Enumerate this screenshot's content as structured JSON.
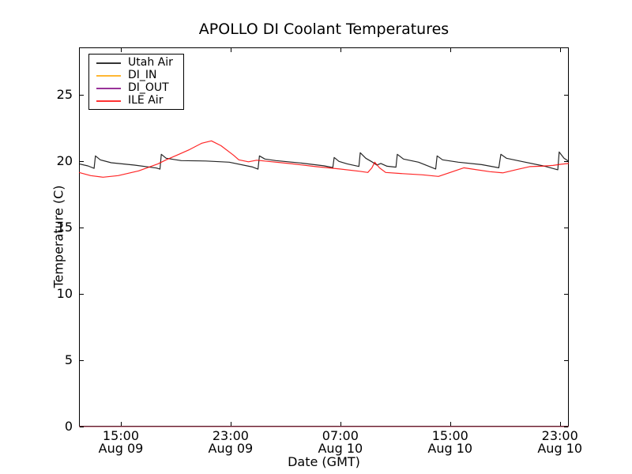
{
  "title": "APOLLO DI Coolant Temperatures",
  "chart_data": {
    "type": "line",
    "title": "APOLLO DI Coolant Temperatures",
    "xlabel": "Date (GMT)",
    "ylabel": "Temperature (C)",
    "x_unit": "hours since Aug 09 00:00 GMT",
    "xlim": [
      11.95,
      47.65
    ],
    "ylim": [
      0,
      28.6
    ],
    "grid": false,
    "legend_position": "upper left",
    "xticks": [
      {
        "hours": 15,
        "time": "15:00",
        "date": "Aug 09"
      },
      {
        "hours": 23,
        "time": "23:00",
        "date": "Aug 09"
      },
      {
        "hours": 31,
        "time": "07:00",
        "date": "Aug 10"
      },
      {
        "hours": 39,
        "time": "15:00",
        "date": "Aug 10"
      },
      {
        "hours": 47,
        "time": "23:00",
        "date": "Aug 10"
      }
    ],
    "yticks": [
      0,
      5,
      10,
      15,
      20,
      25
    ],
    "series": [
      {
        "name": "Utah Air",
        "color": "#000000",
        "points": [
          [
            11.95,
            19.82
          ],
          [
            12.6,
            19.66
          ],
          [
            13.05,
            19.48
          ],
          [
            13.15,
            20.42
          ],
          [
            13.5,
            20.12
          ],
          [
            14.3,
            19.9
          ],
          [
            16.0,
            19.72
          ],
          [
            17.6,
            19.5
          ],
          [
            17.85,
            19.42
          ],
          [
            17.95,
            20.54
          ],
          [
            18.3,
            20.24
          ],
          [
            19.4,
            20.06
          ],
          [
            21.2,
            20.03
          ],
          [
            22.9,
            19.94
          ],
          [
            24.6,
            19.58
          ],
          [
            25.0,
            19.42
          ],
          [
            25.1,
            20.42
          ],
          [
            25.5,
            20.18
          ],
          [
            26.3,
            20.06
          ],
          [
            28.1,
            19.88
          ],
          [
            29.8,
            19.67
          ],
          [
            30.45,
            19.54
          ],
          [
            30.55,
            20.3
          ],
          [
            30.9,
            20.0
          ],
          [
            31.5,
            19.82
          ],
          [
            32.35,
            19.62
          ],
          [
            32.45,
            20.66
          ],
          [
            32.85,
            20.24
          ],
          [
            33.25,
            20.0
          ],
          [
            33.65,
            19.73
          ],
          [
            33.95,
            19.85
          ],
          [
            34.4,
            19.64
          ],
          [
            35.05,
            19.57
          ],
          [
            35.15,
            20.54
          ],
          [
            35.6,
            20.18
          ],
          [
            36.7,
            19.94
          ],
          [
            37.95,
            19.43
          ],
          [
            38.05,
            20.42
          ],
          [
            38.45,
            20.12
          ],
          [
            39.6,
            19.94
          ],
          [
            41.3,
            19.76
          ],
          [
            42.55,
            19.52
          ],
          [
            42.7,
            20.54
          ],
          [
            43.1,
            20.24
          ],
          [
            44.2,
            20.0
          ],
          [
            45.9,
            19.64
          ],
          [
            46.85,
            19.37
          ],
          [
            46.95,
            20.71
          ],
          [
            47.3,
            20.24
          ],
          [
            47.65,
            20.0
          ]
        ]
      },
      {
        "name": "DI_IN",
        "color": "#ffa500",
        "points": [
          [
            11.95,
            0
          ],
          [
            47.65,
            0
          ]
        ]
      },
      {
        "name": "DI_OUT",
        "color": "#800080",
        "points": [
          [
            11.95,
            0
          ],
          [
            47.65,
            0
          ]
        ]
      },
      {
        "name": "ILE Air",
        "color": "#ff0000",
        "points": [
          [
            11.95,
            19.17
          ],
          [
            12.8,
            18.93
          ],
          [
            13.7,
            18.81
          ],
          [
            14.8,
            18.93
          ],
          [
            16.3,
            19.29
          ],
          [
            17.7,
            19.82
          ],
          [
            18.3,
            20.12
          ],
          [
            19.1,
            20.48
          ],
          [
            20.0,
            20.89
          ],
          [
            20.9,
            21.37
          ],
          [
            21.6,
            21.55
          ],
          [
            22.3,
            21.19
          ],
          [
            23.2,
            20.48
          ],
          [
            23.6,
            20.12
          ],
          [
            24.3,
            19.97
          ],
          [
            24.9,
            20.09
          ],
          [
            25.75,
            20.0
          ],
          [
            27.5,
            19.82
          ],
          [
            29.2,
            19.61
          ],
          [
            30.95,
            19.43
          ],
          [
            32.4,
            19.26
          ],
          [
            33.0,
            19.17
          ],
          [
            33.3,
            19.52
          ],
          [
            33.5,
            19.94
          ],
          [
            33.85,
            19.52
          ],
          [
            34.3,
            19.17
          ],
          [
            35.55,
            19.08
          ],
          [
            37.0,
            18.99
          ],
          [
            38.15,
            18.87
          ],
          [
            39.0,
            19.17
          ],
          [
            40.0,
            19.52
          ],
          [
            40.75,
            19.4
          ],
          [
            41.9,
            19.23
          ],
          [
            42.85,
            19.14
          ],
          [
            43.9,
            19.4
          ],
          [
            44.8,
            19.61
          ],
          [
            45.65,
            19.64
          ],
          [
            46.5,
            19.7
          ],
          [
            47.1,
            19.79
          ],
          [
            47.65,
            19.85
          ]
        ]
      }
    ],
    "legend": {
      "items": [
        {
          "label": "Utah Air",
          "color": "#000000"
        },
        {
          "label": "DI_IN",
          "color": "#ffa500"
        },
        {
          "label": "DI_OUT",
          "color": "#800080"
        },
        {
          "label": "ILE Air",
          "color": "#ff0000"
        }
      ]
    }
  }
}
